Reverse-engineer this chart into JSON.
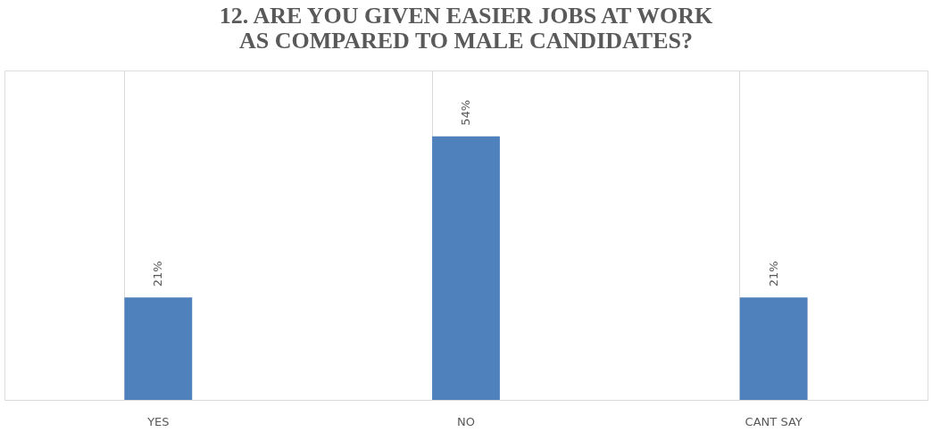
{
  "chart_data": {
    "type": "bar",
    "title": "12. ARE YOU GIVEN EASIER JOBS AT WORK AS COMPARED TO MALE CANDIDATES?",
    "categories": [
      "YES",
      "NO",
      "CANT SAY"
    ],
    "values": [
      21,
      54,
      21
    ],
    "value_labels": [
      "21%",
      "54%",
      "21%"
    ],
    "color": "#4f81bd",
    "grid": "x"
  }
}
